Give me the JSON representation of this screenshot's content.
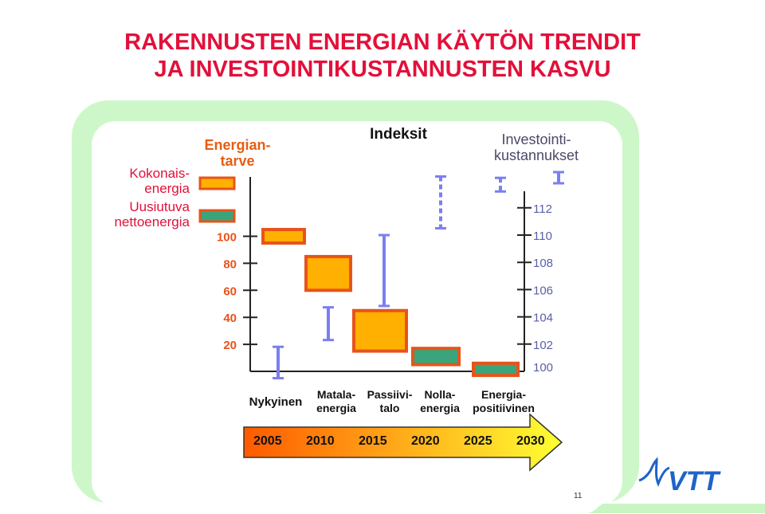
{
  "title_line1": "RAKENNUSTEN ENERGIAN KÄYTÖN TRENDIT",
  "title_line2": "JA INVESTOINTIKUSTANNUSTEN KASVU",
  "legend": {
    "total_line1": "Kokonais-",
    "total_line2": "energia",
    "renewable_line1": "Uusiutuva",
    "renewable_line2": "nettoenergia"
  },
  "headers": {
    "energy_need_line1": "Energian-",
    "energy_need_line2": "tarve",
    "index": "Indeksit",
    "investment_line1": "Investointi-",
    "investment_line2": "kustannukset"
  },
  "page_number": "11",
  "logo_text": "VTT",
  "colors": {
    "title": "#e3103a",
    "total_energy_box": "#ffb000",
    "box_border": "#e8531a",
    "renewable_box": "#3aa57a",
    "cost_markers": "#7b7ff0",
    "background_band": "#b9f3b4",
    "arrow_start": "#ff5a00",
    "arrow_end": "#ffff33"
  },
  "chart_data": {
    "type": "bar",
    "categories": [
      "Nykyinen",
      "Matala-\nenergia",
      "Passiivi-\ntalo",
      "Nolla-\nenergia",
      "Energia-\npositiivinen"
    ],
    "category_lines": [
      [
        "Nykyinen"
      ],
      [
        "Matala-",
        "energia"
      ],
      [
        "Passiivi-",
        "talo"
      ],
      [
        "Nolla-",
        "energia"
      ],
      [
        "Energia-",
        "positiivinen"
      ]
    ],
    "left_axis": {
      "ticks": [
        20,
        40,
        60,
        80,
        100
      ],
      "label": "Energiantarve"
    },
    "right_axis": {
      "ticks": [
        100,
        102,
        104,
        106,
        108,
        110,
        112
      ],
      "label": "Investointikustannukset"
    },
    "series": [
      {
        "name": "Kokonaisenergia",
        "kind": "total_energy",
        "ranges": [
          [
            95,
            105
          ],
          [
            60,
            85
          ],
          [
            15,
            45
          ],
          null,
          null
        ]
      },
      {
        "name": "Uusiutuva nettoenergia",
        "kind": "renewable",
        "ranges": [
          null,
          null,
          null,
          [
            5,
            17
          ],
          [
            -3,
            6
          ]
        ]
      },
      {
        "name": "Investointikustannukset",
        "kind": "cost",
        "ranges": [
          [
            99.5,
            101.8
          ],
          [
            102.3,
            104.7
          ],
          [
            104.8,
            110
          ],
          [
            110.5,
            114.3
          ],
          [
            113.2,
            114.2
          ]
        ]
      }
    ],
    "timeline_years": [
      "2005",
      "2010",
      "2015",
      "2020",
      "2025",
      "2030"
    ]
  }
}
